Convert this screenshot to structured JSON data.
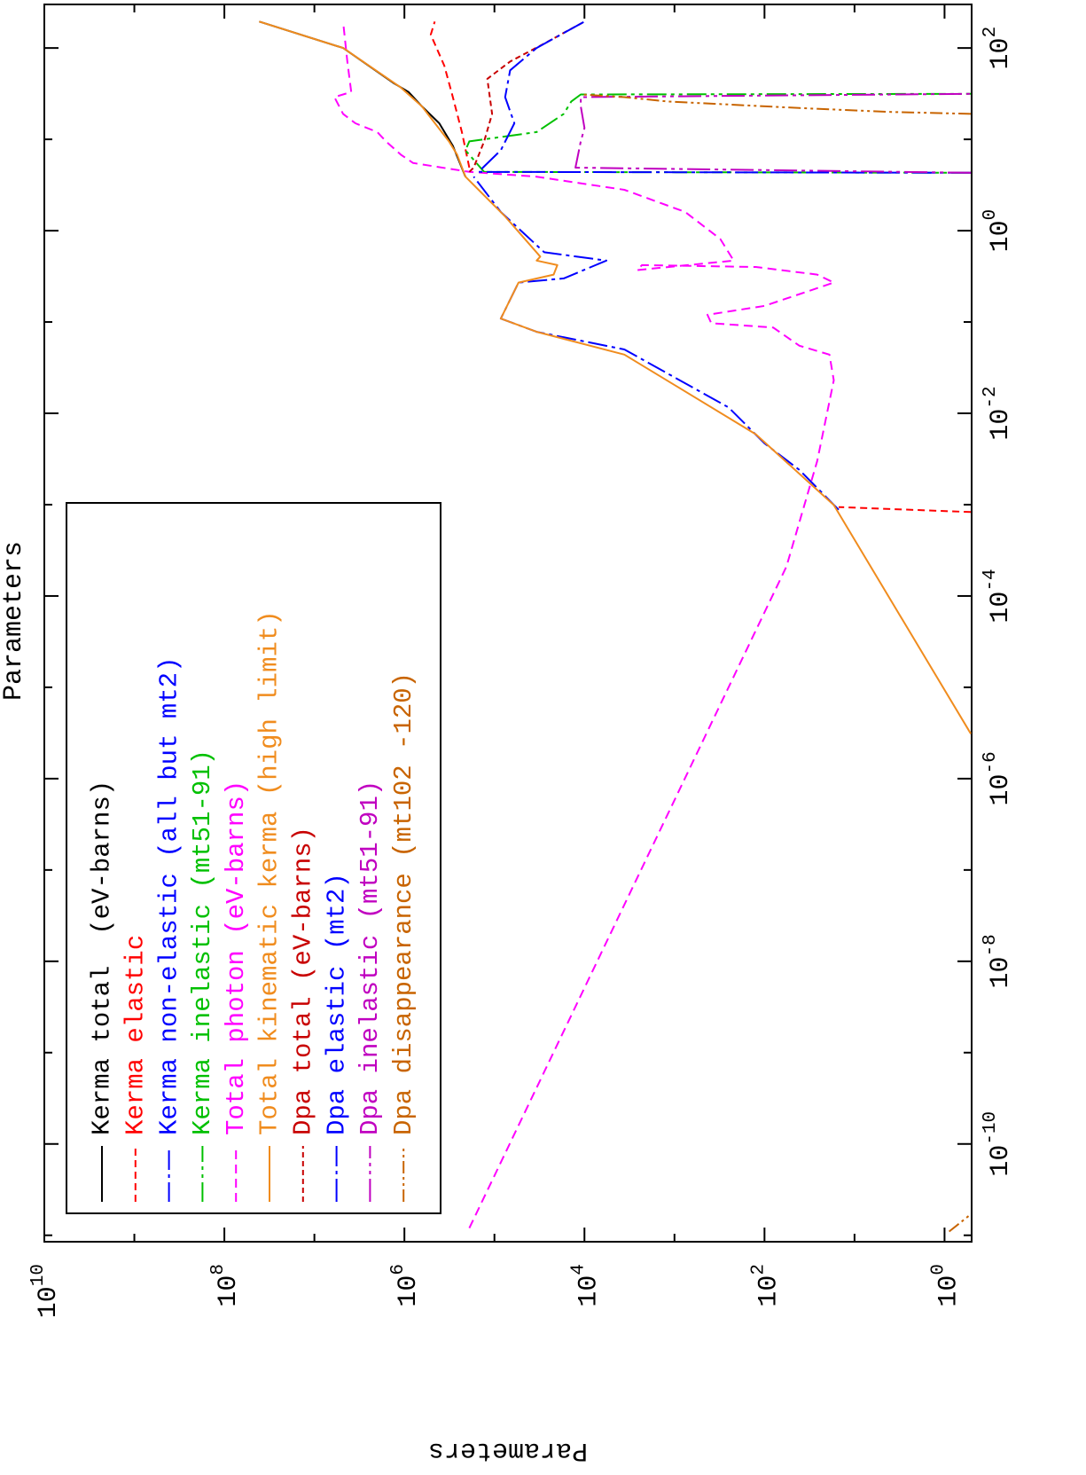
{
  "chart_data": {
    "type": "line",
    "title": "Parameters",
    "ylabel": "Parameters",
    "xscale": "log",
    "yscale": "log",
    "xlim": [
      8.5e-12,
      300
    ],
    "ylim": [
      0.5,
      10000000000.0
    ],
    "xticks": [
      {
        "value": 1e-10,
        "label": "10^-10"
      },
      {
        "value": 1e-08,
        "label": "10^-8"
      },
      {
        "value": 1e-06,
        "label": "10^-6"
      },
      {
        "value": 0.0001,
        "label": "10^-4"
      },
      {
        "value": 0.01,
        "label": "10^-2"
      },
      {
        "value": 1,
        "label": "10^0"
      },
      {
        "value": 100,
        "label": "10^2"
      }
    ],
    "xticks_minor": [
      1e-11,
      1e-09,
      1e-07,
      1e-05,
      0.001,
      0.1,
      10
    ],
    "yticks": [
      {
        "value": 1,
        "label": "10^0"
      },
      {
        "value": 100,
        "label": "10^2"
      },
      {
        "value": 10000,
        "label": "10^4"
      },
      {
        "value": 1000000,
        "label": "10^6"
      },
      {
        "value": 100000000,
        "label": "10^8"
      },
      {
        "value": 10000000000,
        "label": "10^10"
      }
    ],
    "yticks_minor": [
      10,
      1000,
      100000,
      10000000,
      1000000000
    ],
    "grid": false,
    "legend": "upper left",
    "series": [
      {
        "name": "Kerma total  (eV-barns)",
        "color": "#000000",
        "dash": "",
        "x": [
          3.9,
          8.5,
          15,
          23,
          33,
          41,
          100,
          195
        ],
        "values": [
          210000,
          290000,
          410000,
          640000,
          900000,
          1300000,
          4800000,
          41000000
        ]
      },
      {
        "name": "Kerma elastic",
        "color": "#ff0000",
        "dash": "8,5",
        "x": [
          0.00083,
          0.00094,
          null,
          4.9,
          12,
          29,
          64,
          140,
          195
        ],
        "values": [
          0.51,
          15,
          null,
          190000,
          230000,
          290000,
          360000,
          510000,
          460000
        ]
      },
      {
        "name": "Kerma non-elastic (all but mt2)",
        "color": "#0000ff",
        "dash": "22,5,4,5",
        "x": [
          0.00088,
          0.0024,
          0.0047,
          0.0116,
          0.05,
          0.078,
          0.109,
          0.27,
          0.3,
          0.47,
          0.58,
          1.6,
          3.9
        ],
        "values": [
          15,
          41,
          100,
          250,
          3600,
          34000,
          85000,
          54000,
          17000,
          5700,
          28000,
          85000,
          170000
        ]
      },
      {
        "name": "Kerma inelastic (mt51-91)",
        "color": "#00c000",
        "dash": "22,5,4,5,4,5",
        "x": [
          4.3,
          4.4,
          7.6,
          9.5,
          12,
          19,
          26,
          31,
          31.5
        ],
        "values": [
          0.51,
          130000,
          210000,
          190000,
          34000,
          17000,
          14000,
          11000,
          0.51
        ]
      },
      {
        "name": "Total photon (eV-barns)",
        "color": "#ff00ff",
        "dash": "10,6",
        "x": [
          1.2e-11,
          0.00021,
          0.003,
          0.023,
          0.044,
          0.055,
          0.087,
          0.097,
          0.12,
          0.15,
          0.27,
          0.33,
          0.4,
          0.42,
          0.37,
          0.47,
          0.81,
          1.6,
          2.8,
          3.9,
          4.4,
          5.5,
          6.8,
          9.5,
          12,
          15,
          19,
          29,
          33,
          71,
          195
        ],
        "values": [
          190000,
          57,
          26,
          17,
          19,
          41,
          80,
          390,
          430,
          100,
          17,
          26,
          125,
          2300,
          2600,
          220,
          310,
          760,
          3600,
          34000,
          190000,
          800000,
          1100000,
          1600000,
          2000000,
          3500000,
          4800000,
          6000000,
          3900000,
          4300000,
          4800000
        ]
      },
      {
        "name": "Total kinematic kerma (high limit)",
        "color": "#f08c1e",
        "dash": "",
        "x": [
          3.1e-06,
          0.00099,
          0.0059,
          0.044,
          0.078,
          0.109,
          0.27,
          0.33,
          0.42,
          0.47,
          0.52,
          1.43,
          3.9,
          6.8,
          9.5,
          23,
          37,
          100,
          195
        ],
        "values": [
          0.51,
          17,
          125,
          3600,
          34000,
          85000,
          54000,
          22000,
          20000,
          34000,
          31000,
          76000,
          210000,
          260000,
          320000,
          640000,
          1100000,
          4800000,
          41000000
        ]
      },
      {
        "name": "Dpa total (eV-barns)",
        "color": "#c80000",
        "dash": "6,4",
        "x": [
          4.4,
          4.9,
          9.5,
          19,
          46,
          71,
          112,
          195
        ],
        "values": [
          190000,
          170000,
          130000,
          106000,
          120000,
          67000,
          28000,
          10000
        ]
      },
      {
        "name": "Dpa elastic (mt2)",
        "color": "#0000ff",
        "dash": "26,5,4,5",
        "x": [
          4.3,
          4.4,
          7.6,
          15,
          29,
          57,
          100,
          195
        ],
        "values": [
          0.51,
          150000,
          85000,
          60000,
          76000,
          67000,
          34000,
          10000
        ]
      },
      {
        "name": "Dpa inelastic (mt51-91)",
        "color": "#c000c0",
        "dash": "26,5,4,5,4,5",
        "x": [
          4.3,
          4.9,
          9.5,
          13.3,
          23,
          29,
          31.5
        ],
        "values": [
          0.51,
          12600,
          11000,
          10000,
          11000,
          11000,
          0.51
        ]
      },
      {
        "name": "Dpa disappearance (mt102 -120)",
        "color": "#c86400",
        "dash": "14,4,3,4,3,4",
        "x": [
          1.1e-11,
          1.7e-11,
          null,
          19,
          20,
          22,
          26,
          29,
          31
        ],
        "values": [
          0.89,
          0.51,
          null,
          0.51,
          4.3,
          41,
          1200,
          3600,
          11000
        ]
      }
    ]
  }
}
